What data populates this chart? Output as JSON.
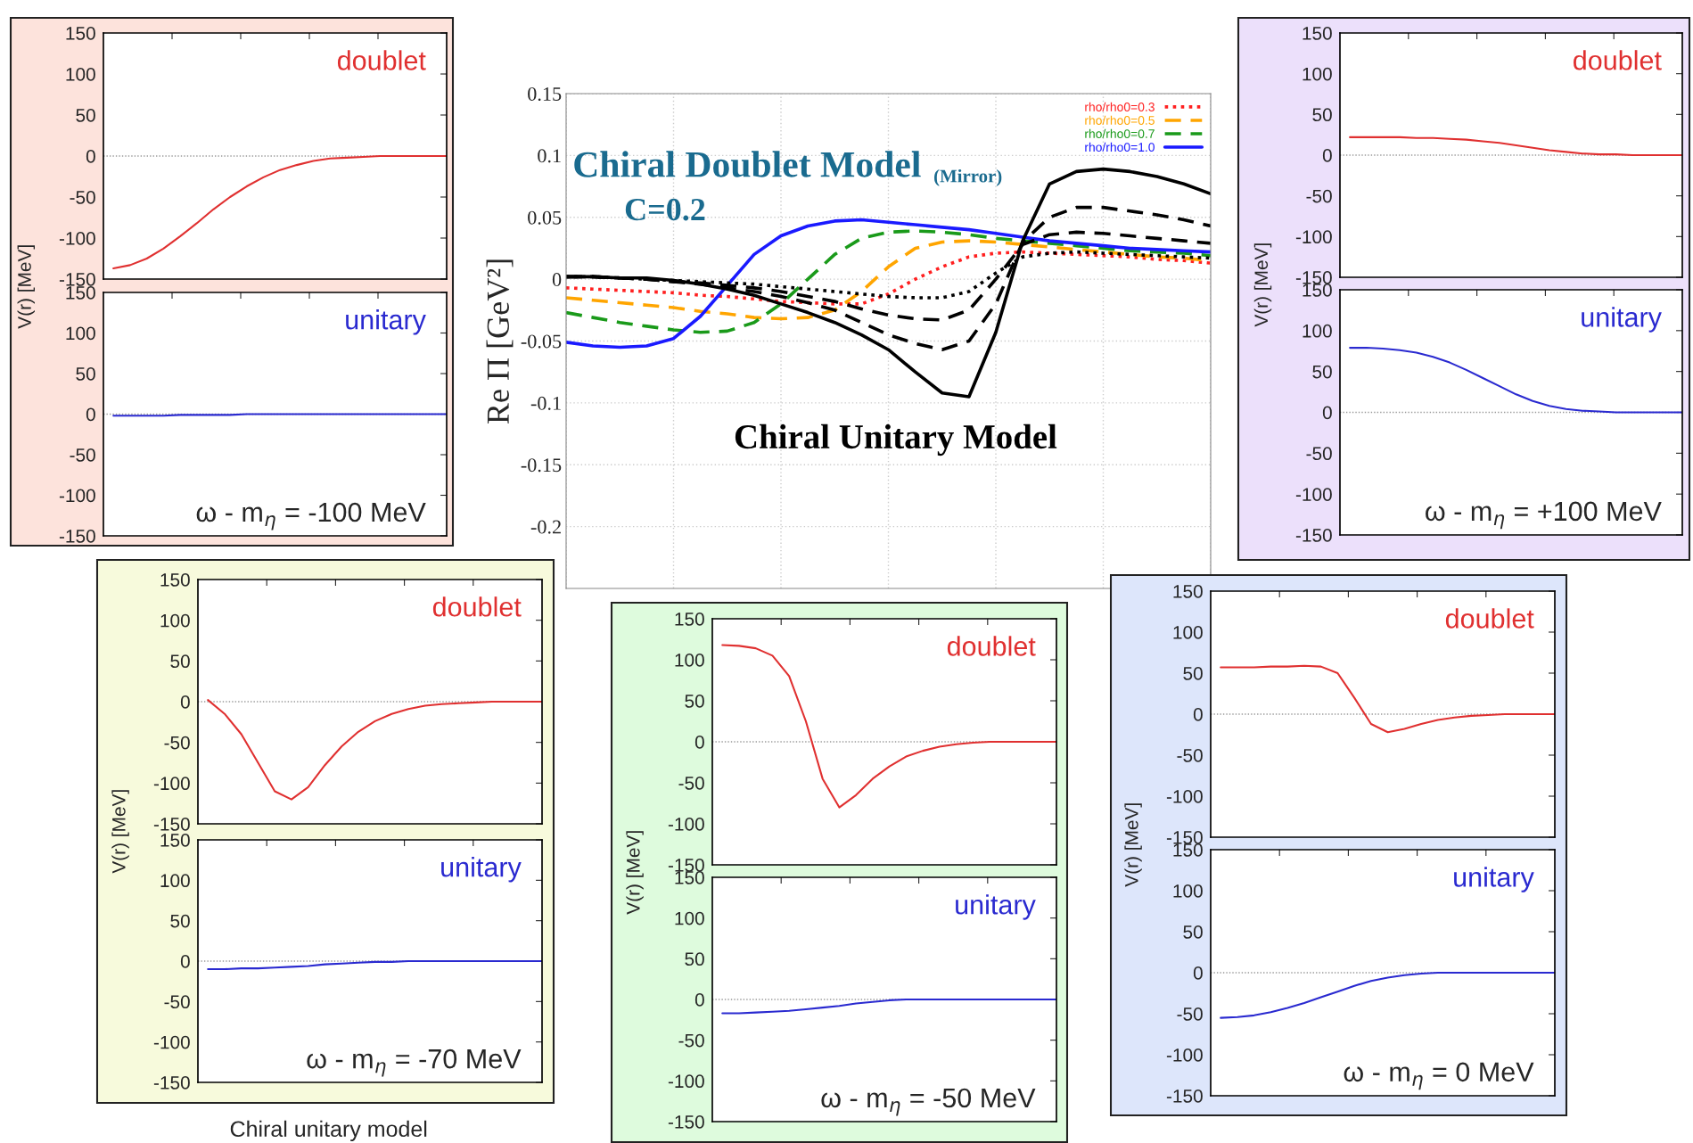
{
  "chart_data": [
    {
      "type": "line",
      "ylabel": "Re Π [GeV²]",
      "categories": [
        null,
        null,
        null,
        null,
        null,
        null,
        null,
        null,
        null,
        null,
        null,
        null,
        null,
        null,
        null,
        null,
        null,
        null,
        null,
        null,
        null,
        null,
        null,
        null,
        null
      ],
      "series": [
        {
          "name": "rho/rho0=0.3",
          "color": "#ff2020",
          "line_style": "dotted",
          "values": [
            -0.007,
            -0.008,
            -0.009,
            -0.01,
            -0.011,
            -0.013,
            -0.014,
            -0.016,
            -0.018,
            -0.019,
            -0.02,
            -0.02,
            -0.012,
            0,
            0.01,
            0.018,
            0.021,
            0.022,
            0.021,
            0.02,
            0.019,
            0.018,
            0.016,
            0.015,
            0.013
          ]
        },
        {
          "name": "rho/rho0=0.5",
          "color": "#ffa500",
          "line_style": "dashed",
          "values": [
            -0.015,
            -0.017,
            -0.019,
            -0.021,
            -0.023,
            -0.026,
            -0.028,
            -0.031,
            -0.032,
            -0.031,
            -0.025,
            -0.01,
            0.01,
            0.025,
            0.03,
            0.031,
            0.03,
            0.028,
            0.026,
            0.024,
            0.022,
            0.02,
            0.018,
            0.017,
            0.015
          ]
        },
        {
          "name": "rho/rho0=0.7",
          "color": "#1a9a1a",
          "line_style": "dashed",
          "values": [
            -0.027,
            -0.031,
            -0.035,
            -0.038,
            -0.041,
            -0.043,
            -0.042,
            -0.035,
            -0.02,
            0,
            0.02,
            0.033,
            0.038,
            0.039,
            0.038,
            0.036,
            0.033,
            0.031,
            0.029,
            0.027,
            0.025,
            0.023,
            0.022,
            0.021,
            0.019
          ]
        },
        {
          "name": "rho/rho0=1.0",
          "color": "#1a1aff",
          "line_style": "solid",
          "values": [
            -0.051,
            -0.054,
            -0.055,
            -0.054,
            -0.048,
            -0.03,
            -0.005,
            0.02,
            0.035,
            0.043,
            0.047,
            0.048,
            0.046,
            0.044,
            0.042,
            0.04,
            0.037,
            0.034,
            0.031,
            0.029,
            0.027,
            0.025,
            0.024,
            0.023,
            0.022
          ]
        },
        {
          "color": "#000000",
          "line_style": "dotted",
          "values": [
            0.002,
            0.002,
            0.001,
            0,
            -0.001,
            -0.002,
            -0.003,
            -0.004,
            -0.006,
            -0.008,
            -0.01,
            -0.012,
            -0.014,
            -0.015,
            -0.015,
            -0.01,
            0.005,
            0.018,
            0.021,
            0.022,
            0.021,
            0.02,
            0.019,
            0.018,
            0.017
          ]
        },
        {
          "color": "#000000",
          "line_style": "dashed",
          "values": [
            0.002,
            0.002,
            0.001,
            0,
            -0.002,
            -0.003,
            -0.005,
            -0.007,
            -0.01,
            -0.014,
            -0.018,
            -0.024,
            -0.029,
            -0.032,
            -0.033,
            -0.025,
            0,
            0.028,
            0.036,
            0.038,
            0.037,
            0.035,
            0.033,
            0.031,
            0.029
          ]
        },
        {
          "color": "#000000",
          "line_style": "dashed",
          "values": [
            0.002,
            0.002,
            0.001,
            0,
            -0.002,
            -0.004,
            -0.007,
            -0.01,
            -0.014,
            -0.019,
            -0.025,
            -0.035,
            -0.045,
            -0.052,
            -0.057,
            -0.05,
            -0.02,
            0.03,
            0.05,
            0.058,
            0.058,
            0.055,
            0.052,
            0.048,
            0.043
          ]
        },
        {
          "color": "#000000",
          "line_style": "solid",
          "values": [
            0.002,
            0.002,
            0.001,
            0.001,
            -0.001,
            -0.004,
            -0.008,
            -0.013,
            -0.02,
            -0.027,
            -0.035,
            -0.045,
            -0.057,
            -0.075,
            -0.092,
            -0.095,
            -0.043,
            0.031,
            0.077,
            0.087,
            0.089,
            0.087,
            0.083,
            0.077,
            0.069
          ]
        }
      ],
      "ylim": [
        -0.25,
        0.15
      ],
      "yticks": [
        0.15,
        0.1,
        0.05,
        0,
        -0.05,
        -0.1,
        -0.15,
        -0.2
      ],
      "grid": true,
      "legend": "top right",
      "annotations": [
        "Chiral Doublet Model",
        "(Mirror)",
        "C=0.2",
        "Chiral Unitary Model"
      ]
    },
    {
      "type": "line",
      "title": "doublet",
      "ylabel": "V(r) [MeV]",
      "categories": [
        null,
        null,
        null,
        null,
        null,
        null,
        null,
        null,
        null,
        null,
        null,
        null,
        null,
        null,
        null,
        null,
        null,
        null,
        null,
        null,
        null
      ],
      "series": [
        {
          "color": "#e03030",
          "values": [
            -137,
            -133,
            -125,
            -113,
            -98,
            -82,
            -65,
            -50,
            -37,
            -26,
            -17,
            -11,
            -6,
            -3,
            -2,
            -1,
            0,
            0,
            0,
            0,
            0
          ]
        }
      ],
      "ylim": [
        -150,
        150
      ],
      "yticks": [
        150,
        100,
        50,
        0,
        -50,
        -100,
        -150
      ],
      "ref_lines": [
        {
          "axis": "y",
          "value": 0,
          "color": "#999999",
          "line_style": "dotted"
        }
      ]
    },
    {
      "type": "line",
      "title": "unitary",
      "categories": [
        null,
        null,
        null,
        null,
        null,
        null,
        null,
        null,
        null,
        null,
        null,
        null,
        null,
        null,
        null,
        null,
        null,
        null,
        null,
        null,
        null
      ],
      "series": [
        {
          "color": "#2a2ad0",
          "values": [
            -2,
            -2,
            -2,
            -2,
            -1,
            -1,
            -1,
            -1,
            0,
            0,
            0,
            0,
            0,
            0,
            0,
            0,
            0,
            0,
            0,
            0,
            0
          ]
        }
      ],
      "ylim": [
        -150,
        150
      ],
      "yticks": [
        150,
        100,
        50,
        0,
        -50,
        -100,
        -150
      ],
      "ref_lines": [
        {
          "axis": "y",
          "value": 0,
          "color": "#999999",
          "line_style": "dotted"
        }
      ],
      "annotations": [
        "ω - m$_{η}$ = -100 MeV"
      ]
    },
    {
      "type": "line",
      "title": "doublet",
      "ylabel": "V(r) [MeV]",
      "categories": [
        null,
        null,
        null,
        null,
        null,
        null,
        null,
        null,
        null,
        null,
        null,
        null,
        null,
        null,
        null,
        null,
        null,
        null,
        null,
        null,
        null
      ],
      "series": [
        {
          "color": "#e03030",
          "values": [
            22,
            22,
            22,
            22,
            21,
            21,
            20,
            19,
            17,
            15,
            12,
            9,
            6,
            4,
            2,
            1,
            1,
            0,
            0,
            0,
            0
          ]
        }
      ],
      "ylim": [
        -150,
        150
      ],
      "yticks": [
        150,
        100,
        50,
        0,
        -50,
        -100,
        -150
      ],
      "ref_lines": [
        {
          "axis": "y",
          "value": 0,
          "color": "#999999",
          "line_style": "dotted"
        }
      ]
    },
    {
      "type": "line",
      "title": "unitary",
      "categories": [
        null,
        null,
        null,
        null,
        null,
        null,
        null,
        null,
        null,
        null,
        null,
        null,
        null,
        null,
        null,
        null,
        null,
        null,
        null,
        null,
        null
      ],
      "series": [
        {
          "color": "#2a2ad0",
          "values": [
            79,
            79,
            78,
            76,
            73,
            68,
            61,
            52,
            42,
            32,
            22,
            14,
            8,
            4,
            2,
            1,
            0,
            0,
            0,
            0,
            0
          ]
        }
      ],
      "ylim": [
        -150,
        150
      ],
      "yticks": [
        150,
        100,
        50,
        0,
        -50,
        -100,
        -150
      ],
      "ref_lines": [
        {
          "axis": "y",
          "value": 0,
          "color": "#999999",
          "line_style": "dotted"
        }
      ],
      "annotations": [
        "ω - m$_{η}$ = +100 MeV"
      ]
    },
    {
      "type": "line",
      "title": "doublet",
      "ylabel": "V(r) [MeV]",
      "categories": [
        null,
        null,
        null,
        null,
        null,
        null,
        null,
        null,
        null,
        null,
        null,
        null,
        null,
        null,
        null,
        null,
        null,
        null,
        null,
        null,
        null
      ],
      "series": [
        {
          "color": "#e03030",
          "values": [
            2,
            -15,
            -40,
            -75,
            -110,
            -120,
            -105,
            -78,
            -55,
            -37,
            -24,
            -15,
            -9,
            -5,
            -3,
            -2,
            -1,
            0,
            0,
            0,
            0
          ]
        }
      ],
      "ylim": [
        -150,
        150
      ],
      "yticks": [
        150,
        100,
        50,
        0,
        -50,
        -100,
        -150
      ],
      "ref_lines": [
        {
          "axis": "y",
          "value": 0,
          "color": "#999999",
          "line_style": "dotted"
        }
      ]
    },
    {
      "type": "line",
      "title": "unitary",
      "categories": [
        null,
        null,
        null,
        null,
        null,
        null,
        null,
        null,
        null,
        null,
        null,
        null,
        null,
        null,
        null,
        null,
        null,
        null,
        null,
        null,
        null
      ],
      "series": [
        {
          "color": "#2a2ad0",
          "values": [
            -10,
            -10,
            -9,
            -9,
            -8,
            -7,
            -6,
            -4,
            -3,
            -2,
            -1,
            -1,
            0,
            0,
            0,
            0,
            0,
            0,
            0,
            0,
            0
          ]
        }
      ],
      "ylim": [
        -150,
        150
      ],
      "yticks": [
        150,
        100,
        50,
        0,
        -50,
        -100,
        -150
      ],
      "ref_lines": [
        {
          "axis": "y",
          "value": 0,
          "color": "#999999",
          "line_style": "dotted"
        }
      ],
      "annotations": [
        "ω - m$_{η}$ = -70 MeV",
        "Chiral unitary model"
      ]
    },
    {
      "type": "line",
      "title": "doublet",
      "ylabel": "V(r) [MeV]",
      "categories": [
        null,
        null,
        null,
        null,
        null,
        null,
        null,
        null,
        null,
        null,
        null,
        null,
        null,
        null,
        null,
        null,
        null,
        null,
        null,
        null,
        null
      ],
      "series": [
        {
          "color": "#e03030",
          "values": [
            118,
            117,
            114,
            105,
            80,
            25,
            -45,
            -80,
            -65,
            -45,
            -30,
            -18,
            -11,
            -6,
            -3,
            -1,
            0,
            0,
            0,
            0,
            0
          ]
        }
      ],
      "ylim": [
        -150,
        150
      ],
      "yticks": [
        150,
        100,
        50,
        0,
        -50,
        -100,
        -150
      ],
      "ref_lines": [
        {
          "axis": "y",
          "value": 0,
          "color": "#999999",
          "line_style": "dotted"
        }
      ]
    },
    {
      "type": "line",
      "title": "unitary",
      "categories": [
        null,
        null,
        null,
        null,
        null,
        null,
        null,
        null,
        null,
        null,
        null,
        null,
        null,
        null,
        null,
        null,
        null,
        null,
        null,
        null,
        null
      ],
      "series": [
        {
          "color": "#2a2ad0",
          "values": [
            -17,
            -17,
            -16,
            -15,
            -14,
            -12,
            -10,
            -8,
            -5,
            -3,
            -1,
            0,
            0,
            0,
            0,
            0,
            0,
            0,
            0,
            0,
            0
          ]
        }
      ],
      "ylim": [
        -150,
        150
      ],
      "yticks": [
        150,
        100,
        50,
        0,
        -50,
        -100,
        -150
      ],
      "ref_lines": [
        {
          "axis": "y",
          "value": 0,
          "color": "#999999",
          "line_style": "dotted"
        }
      ],
      "annotations": [
        "ω - m$_{η}$ = -50 MeV"
      ]
    },
    {
      "type": "line",
      "title": "doublet",
      "ylabel": "V(r) [MeV]",
      "categories": [
        null,
        null,
        null,
        null,
        null,
        null,
        null,
        null,
        null,
        null,
        null,
        null,
        null,
        null,
        null,
        null,
        null,
        null,
        null,
        null,
        null
      ],
      "series": [
        {
          "color": "#e03030",
          "values": [
            57,
            57,
            57,
            58,
            58,
            59,
            58,
            50,
            20,
            -12,
            -22,
            -18,
            -12,
            -7,
            -4,
            -2,
            -1,
            0,
            0,
            0,
            0
          ]
        }
      ],
      "ylim": [
        -150,
        150
      ],
      "yticks": [
        150,
        100,
        50,
        0,
        -50,
        -100,
        -150
      ],
      "ref_lines": [
        {
          "axis": "y",
          "value": 0,
          "color": "#999999",
          "line_style": "dotted"
        }
      ]
    },
    {
      "type": "line",
      "title": "unitary",
      "categories": [
        null,
        null,
        null,
        null,
        null,
        null,
        null,
        null,
        null,
        null,
        null,
        null,
        null,
        null,
        null,
        null,
        null,
        null,
        null,
        null,
        null
      ],
      "series": [
        {
          "color": "#2a2ad0",
          "values": [
            -55,
            -54,
            -52,
            -48,
            -43,
            -37,
            -30,
            -23,
            -16,
            -10,
            -6,
            -3,
            -1,
            0,
            0,
            0,
            0,
            0,
            0,
            0,
            0
          ]
        }
      ],
      "ylim": [
        -150,
        150
      ],
      "yticks": [
        150,
        100,
        50,
        0,
        -50,
        -100,
        -150
      ],
      "ref_lines": [
        {
          "axis": "y",
          "value": 0,
          "color": "#999999",
          "line_style": "dotted"
        }
      ],
      "annotations": [
        "ω - m$_{η}$ = 0 MeV"
      ]
    }
  ]
}
